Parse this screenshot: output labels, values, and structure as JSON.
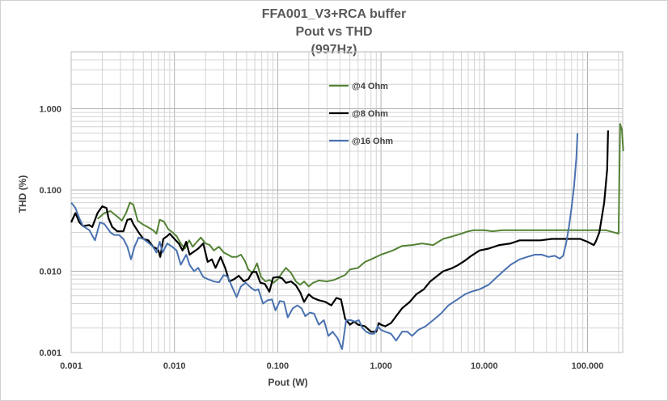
{
  "chart_data": {
    "type": "line",
    "title": "FFA001_V3+RCA buffer",
    "subtitle": "Pout vs THD",
    "subtitle2": "(997Hz)",
    "xlabel": "Pout (W)",
    "ylabel": "THD (%)",
    "x_scale": "log",
    "y_scale": "log",
    "xlim": [
      0.001,
      300
    ],
    "ylim": [
      0.001,
      5
    ],
    "x_ticks": [
      "0.001",
      "0.010",
      "0.100",
      "1.000",
      "10.000",
      "100.000"
    ],
    "y_ticks": [
      "0.001",
      "0.010",
      "0.100",
      "1.000"
    ],
    "grid": true,
    "legend_position": "inside top-center",
    "series": [
      {
        "name": "@4 Ohm",
        "color": "#548235",
        "points": [
          [
            0.0018,
            0.044
          ],
          [
            0.0021,
            0.052
          ],
          [
            0.0024,
            0.055
          ],
          [
            0.0028,
            0.047
          ],
          [
            0.0031,
            0.042
          ],
          [
            0.0034,
            0.052
          ],
          [
            0.0037,
            0.07
          ],
          [
            0.004,
            0.066
          ],
          [
            0.0044,
            0.042
          ],
          [
            0.0049,
            0.038
          ],
          [
            0.0055,
            0.035
          ],
          [
            0.0062,
            0.032
          ],
          [
            0.0067,
            0.029
          ],
          [
            0.0072,
            0.043
          ],
          [
            0.0079,
            0.041
          ],
          [
            0.0087,
            0.033
          ],
          [
            0.0096,
            0.03
          ],
          [
            0.0105,
            0.027
          ],
          [
            0.0115,
            0.022
          ],
          [
            0.0126,
            0.019
          ],
          [
            0.0139,
            0.024
          ],
          [
            0.015,
            0.02
          ],
          [
            0.0165,
            0.023
          ],
          [
            0.018,
            0.026
          ],
          [
            0.02,
            0.022
          ],
          [
            0.022,
            0.021
          ],
          [
            0.024,
            0.018
          ],
          [
            0.027,
            0.02
          ],
          [
            0.03,
            0.017
          ],
          [
            0.033,
            0.016
          ],
          [
            0.036,
            0.015
          ],
          [
            0.04,
            0.015
          ],
          [
            0.044,
            0.016
          ],
          [
            0.048,
            0.0135
          ],
          [
            0.052,
            0.0105
          ],
          [
            0.057,
            0.0095
          ],
          [
            0.063,
            0.0125
          ],
          [
            0.069,
            0.0085
          ],
          [
            0.076,
            0.0075
          ],
          [
            0.083,
            0.0078
          ],
          [
            0.091,
            0.0072
          ],
          [
            0.1,
            0.008
          ],
          [
            0.11,
            0.0095
          ],
          [
            0.12,
            0.011
          ],
          [
            0.135,
            0.0095
          ],
          [
            0.15,
            0.0075
          ],
          [
            0.165,
            0.0068
          ],
          [
            0.18,
            0.0075
          ],
          [
            0.2,
            0.0065
          ],
          [
            0.22,
            0.0072
          ],
          [
            0.25,
            0.0077
          ],
          [
            0.3,
            0.0075
          ],
          [
            0.35,
            0.0078
          ],
          [
            0.4,
            0.0084
          ],
          [
            0.45,
            0.009
          ],
          [
            0.5,
            0.0105
          ],
          [
            0.6,
            0.011
          ],
          [
            0.7,
            0.013
          ],
          [
            0.8,
            0.014
          ],
          [
            1.0,
            0.016
          ],
          [
            1.3,
            0.018
          ],
          [
            1.6,
            0.0205
          ],
          [
            2.0,
            0.021
          ],
          [
            2.5,
            0.022
          ],
          [
            3.2,
            0.021
          ],
          [
            3.6,
            0.023
          ],
          [
            4.0,
            0.025
          ],
          [
            5.0,
            0.027
          ],
          [
            6.0,
            0.029
          ],
          [
            7.0,
            0.031
          ],
          [
            8.0,
            0.032
          ],
          [
            10.0,
            0.032
          ],
          [
            12.0,
            0.031
          ],
          [
            15.0,
            0.032
          ],
          [
            20.0,
            0.032
          ],
          [
            30.0,
            0.032
          ],
          [
            50.0,
            0.032
          ],
          [
            80.0,
            0.032
          ],
          [
            100.0,
            0.032
          ],
          [
            150.0,
            0.032
          ],
          [
            200.0,
            0.029
          ],
          [
            205.0,
            0.3
          ],
          [
            207.0,
            0.65
          ],
          [
            215.0,
            0.55
          ],
          [
            222.0,
            0.3
          ]
        ]
      },
      {
        "name": "@8 Ohm",
        "color": "#000000",
        "points": [
          [
            0.001,
            0.04
          ],
          [
            0.0011,
            0.052
          ],
          [
            0.0012,
            0.04
          ],
          [
            0.0013,
            0.036
          ],
          [
            0.0015,
            0.037
          ],
          [
            0.0016,
            0.035
          ],
          [
            0.0018,
            0.052
          ],
          [
            0.002,
            0.063
          ],
          [
            0.0022,
            0.06
          ],
          [
            0.0023,
            0.045
          ],
          [
            0.0025,
            0.035
          ],
          [
            0.0028,
            0.031
          ],
          [
            0.0032,
            0.031
          ],
          [
            0.0035,
            0.043
          ],
          [
            0.0038,
            0.044
          ],
          [
            0.004,
            0.038
          ],
          [
            0.0045,
            0.03
          ],
          [
            0.005,
            0.025
          ],
          [
            0.0056,
            0.024
          ],
          [
            0.0062,
            0.02
          ],
          [
            0.0067,
            0.019
          ],
          [
            0.007,
            0.018
          ],
          [
            0.0073,
            0.015
          ],
          [
            0.0078,
            0.025
          ],
          [
            0.0085,
            0.027
          ],
          [
            0.009,
            0.029
          ],
          [
            0.01,
            0.025
          ],
          [
            0.011,
            0.022
          ],
          [
            0.012,
            0.018
          ],
          [
            0.013,
            0.023
          ],
          [
            0.014,
            0.016
          ],
          [
            0.015,
            0.017
          ],
          [
            0.017,
            0.019
          ],
          [
            0.019,
            0.022
          ],
          [
            0.021,
            0.013
          ],
          [
            0.023,
            0.014
          ],
          [
            0.025,
            0.011
          ],
          [
            0.028,
            0.015
          ],
          [
            0.031,
            0.011
          ],
          [
            0.034,
            0.0075
          ],
          [
            0.038,
            0.008
          ],
          [
            0.042,
            0.0088
          ],
          [
            0.047,
            0.0075
          ],
          [
            0.052,
            0.008
          ],
          [
            0.057,
            0.0098
          ],
          [
            0.062,
            0.0098
          ],
          [
            0.068,
            0.0072
          ],
          [
            0.075,
            0.007
          ],
          [
            0.083,
            0.0056
          ],
          [
            0.09,
            0.0083
          ],
          [
            0.1,
            0.0085
          ],
          [
            0.11,
            0.0082
          ],
          [
            0.12,
            0.0072
          ],
          [
            0.135,
            0.0075
          ],
          [
            0.15,
            0.0067
          ],
          [
            0.165,
            0.0055
          ],
          [
            0.18,
            0.0042
          ],
          [
            0.2,
            0.0052
          ],
          [
            0.22,
            0.0047
          ],
          [
            0.25,
            0.0044
          ],
          [
            0.29,
            0.0042
          ],
          [
            0.33,
            0.0038
          ],
          [
            0.37,
            0.0047
          ],
          [
            0.41,
            0.0045
          ],
          [
            0.45,
            0.0026
          ],
          [
            0.5,
            0.0022
          ],
          [
            0.55,
            0.0024
          ],
          [
            0.6,
            0.0022
          ],
          [
            0.7,
            0.0021
          ],
          [
            0.8,
            0.0018
          ],
          [
            0.9,
            0.0018
          ],
          [
            0.95,
            0.0023
          ],
          [
            1.0,
            0.0022
          ],
          [
            1.1,
            0.0021
          ],
          [
            1.25,
            0.0023
          ],
          [
            1.4,
            0.0028
          ],
          [
            1.6,
            0.0035
          ],
          [
            1.9,
            0.0042
          ],
          [
            2.2,
            0.0052
          ],
          [
            2.6,
            0.006
          ],
          [
            3.0,
            0.0075
          ],
          [
            3.4,
            0.0085
          ],
          [
            4.0,
            0.01
          ],
          [
            4.8,
            0.0108
          ],
          [
            5.5,
            0.0118
          ],
          [
            6.5,
            0.0135
          ],
          [
            7.5,
            0.0155
          ],
          [
            9.0,
            0.018
          ],
          [
            11.0,
            0.019
          ],
          [
            14.0,
            0.021
          ],
          [
            18.0,
            0.022
          ],
          [
            22.0,
            0.024
          ],
          [
            28.0,
            0.024
          ],
          [
            35.0,
            0.024
          ],
          [
            45.0,
            0.025
          ],
          [
            55.0,
            0.025
          ],
          [
            70.0,
            0.025
          ],
          [
            85.0,
            0.025
          ],
          [
            100.0,
            0.023
          ],
          [
            115.0,
            0.021
          ],
          [
            120.0,
            0.023
          ],
          [
            130.0,
            0.03
          ],
          [
            145.0,
            0.07
          ],
          [
            155.0,
            0.18
          ],
          [
            158.0,
            0.54
          ]
        ]
      },
      {
        "name": "@16 Ohm",
        "color": "#4a72b0",
        "points": [
          [
            0.001,
            0.07
          ],
          [
            0.0011,
            0.06
          ],
          [
            0.0012,
            0.045
          ],
          [
            0.0013,
            0.036
          ],
          [
            0.0015,
            0.032
          ],
          [
            0.0017,
            0.024
          ],
          [
            0.0019,
            0.04
          ],
          [
            0.0021,
            0.038
          ],
          [
            0.0024,
            0.03
          ],
          [
            0.0026,
            0.028
          ],
          [
            0.0029,
            0.028
          ],
          [
            0.0032,
            0.025
          ],
          [
            0.0035,
            0.02
          ],
          [
            0.0038,
            0.014
          ],
          [
            0.0041,
            0.02
          ],
          [
            0.0045,
            0.026
          ],
          [
            0.005,
            0.025
          ],
          [
            0.0057,
            0.022
          ],
          [
            0.0062,
            0.02
          ],
          [
            0.0067,
            0.017
          ],
          [
            0.0072,
            0.023
          ],
          [
            0.0077,
            0.017
          ],
          [
            0.0085,
            0.022
          ],
          [
            0.0095,
            0.02
          ],
          [
            0.0105,
            0.018
          ],
          [
            0.0115,
            0.012
          ],
          [
            0.013,
            0.016
          ],
          [
            0.014,
            0.012
          ],
          [
            0.0155,
            0.01
          ],
          [
            0.017,
            0.011
          ],
          [
            0.019,
            0.0085
          ],
          [
            0.021,
            0.008
          ],
          [
            0.024,
            0.0075
          ],
          [
            0.027,
            0.0073
          ],
          [
            0.03,
            0.009
          ],
          [
            0.033,
            0.0085
          ],
          [
            0.036,
            0.0065
          ],
          [
            0.04,
            0.0048
          ],
          [
            0.044,
            0.0065
          ],
          [
            0.049,
            0.0072
          ],
          [
            0.055,
            0.0063
          ],
          [
            0.06,
            0.0058
          ],
          [
            0.065,
            0.006
          ],
          [
            0.072,
            0.004
          ],
          [
            0.08,
            0.0044
          ],
          [
            0.088,
            0.0045
          ],
          [
            0.095,
            0.0033
          ],
          [
            0.105,
            0.0043
          ],
          [
            0.115,
            0.0042
          ],
          [
            0.125,
            0.0027
          ],
          [
            0.14,
            0.0035
          ],
          [
            0.155,
            0.0038
          ],
          [
            0.17,
            0.0035
          ],
          [
            0.185,
            0.0028
          ],
          [
            0.205,
            0.0031
          ],
          [
            0.225,
            0.003
          ],
          [
            0.25,
            0.0022
          ],
          [
            0.28,
            0.0025
          ],
          [
            0.31,
            0.0016
          ],
          [
            0.34,
            0.0018
          ],
          [
            0.38,
            0.0015
          ],
          [
            0.42,
            0.0011
          ],
          [
            0.46,
            0.0025
          ],
          [
            0.51,
            0.0025
          ],
          [
            0.56,
            0.0024
          ],
          [
            0.61,
            0.0025
          ],
          [
            0.66,
            0.002
          ],
          [
            0.72,
            0.0018
          ],
          [
            0.79,
            0.0017
          ],
          [
            0.86,
            0.0017
          ],
          [
            0.93,
            0.0021
          ],
          [
            1.0,
            0.0019
          ],
          [
            1.1,
            0.0018
          ],
          [
            1.25,
            0.0017
          ],
          [
            1.4,
            0.0014
          ],
          [
            1.6,
            0.0018
          ],
          [
            1.8,
            0.0018
          ],
          [
            2.0,
            0.0016
          ],
          [
            2.3,
            0.0019
          ],
          [
            2.7,
            0.0021
          ],
          [
            3.2,
            0.0025
          ],
          [
            3.8,
            0.003
          ],
          [
            4.5,
            0.0038
          ],
          [
            5.5,
            0.0045
          ],
          [
            6.5,
            0.0052
          ],
          [
            7.5,
            0.0056
          ],
          [
            9.0,
            0.006
          ],
          [
            11.0,
            0.0068
          ],
          [
            13.0,
            0.0083
          ],
          [
            15.0,
            0.0098
          ],
          [
            18.0,
            0.012
          ],
          [
            22.0,
            0.014
          ],
          [
            26.0,
            0.015
          ],
          [
            31.0,
            0.016
          ],
          [
            36.0,
            0.016
          ],
          [
            42.0,
            0.015
          ],
          [
            48.0,
            0.0155
          ],
          [
            54.0,
            0.0143
          ],
          [
            58.0,
            0.0155
          ],
          [
            62.0,
            0.022
          ],
          [
            66.0,
            0.035
          ],
          [
            70.0,
            0.06
          ],
          [
            74.0,
            0.11
          ],
          [
            78.0,
            0.25
          ],
          [
            80.0,
            0.5
          ]
        ]
      }
    ]
  }
}
